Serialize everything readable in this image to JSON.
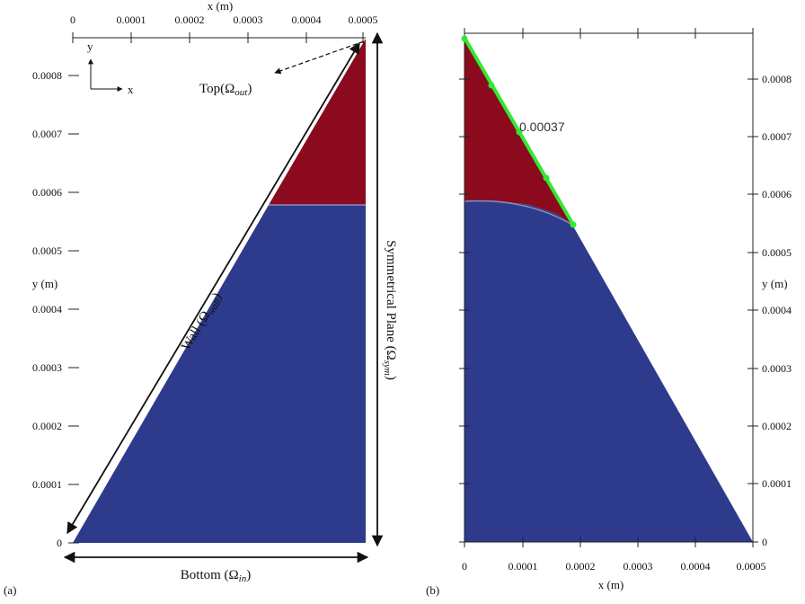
{
  "panels": {
    "a": {
      "label": "(a)",
      "x_axis_title": "x (m)",
      "y_axis_title": "y (m)",
      "x_ticks": [
        "0",
        "0.0001",
        "0.0002",
        "0.0003",
        "0.0004",
        "0.0005"
      ],
      "y_ticks": [
        "0",
        "0.0001",
        "0.0002",
        "0.0003",
        "0.0004",
        "0.0005",
        "0.0006",
        "0.0007",
        "0.0008"
      ],
      "coord_y": "y",
      "coord_x": "x",
      "top_label": "Top(Ω",
      "top_sub": "out",
      "wall_label": "Wall (Ω",
      "wall_sub": "wall",
      "sym_label": "Symmetrical Plane (Ω",
      "sym_sub": "sym",
      "bottom_label": "Bottom (Ω",
      "bottom_sub": "in",
      "close_paren": ")"
    },
    "b": {
      "label": "(b)",
      "x_axis_title": "x (m)",
      "y_axis_title": "y (m)",
      "x_ticks": [
        "0",
        "0.0001",
        "0.0002",
        "0.0003",
        "0.0004",
        "0.0005"
      ],
      "y_ticks": [
        "0",
        "0.0001",
        "0.0002",
        "0.0003",
        "0.0004",
        "0.0005",
        "0.0006",
        "0.0007",
        "0.0008"
      ],
      "segment_label": "0.00037"
    }
  },
  "colors": {
    "blue_region": "#2e3a8c",
    "red_region": "#8b0a1e",
    "green_segment": "#33e833",
    "axis": "#222222"
  }
}
